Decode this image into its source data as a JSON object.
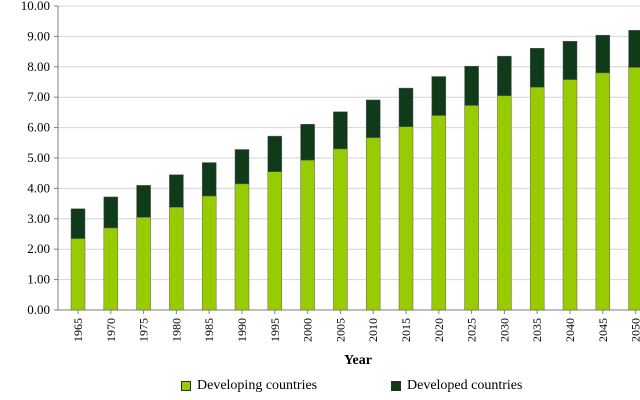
{
  "chart_data": {
    "type": "bar",
    "stacked": true,
    "categories": [
      "1965",
      "1970",
      "1975",
      "1980",
      "1985",
      "1990",
      "1995",
      "2000",
      "2005",
      "2010",
      "2015",
      "2020",
      "2025",
      "2030",
      "2035",
      "2040",
      "2045",
      "2050"
    ],
    "series": [
      {
        "name": "Developing countries",
        "color": "#99cc00",
        "values": [
          2.35,
          2.7,
          3.05,
          3.38,
          3.75,
          4.15,
          4.55,
          4.93,
          5.3,
          5.67,
          6.03,
          6.4,
          6.73,
          7.05,
          7.33,
          7.58,
          7.8,
          7.98
        ]
      },
      {
        "name": "Developed countries",
        "color": "#0f3b1a",
        "values": [
          0.98,
          1.02,
          1.05,
          1.07,
          1.1,
          1.13,
          1.17,
          1.18,
          1.22,
          1.24,
          1.27,
          1.28,
          1.29,
          1.3,
          1.28,
          1.26,
          1.24,
          1.22
        ]
      }
    ],
    "title": "",
    "xlabel": "Year",
    "ylabel": "",
    "ylim": [
      0,
      10
    ],
    "yticks": [
      "0.00",
      "1.00",
      "2.00",
      "3.00",
      "4.00",
      "5.00",
      "6.00",
      "7.00",
      "8.00",
      "9.00",
      "10.00"
    ],
    "grid": true,
    "legend_position": "bottom"
  },
  "legend": {
    "developing_label": "Developing countries",
    "developed_label": "Developed countries"
  },
  "colors": {
    "grid": "#d4d4d4",
    "axis": "#7f7f7f",
    "bar_outline": "#5f5f5f"
  }
}
